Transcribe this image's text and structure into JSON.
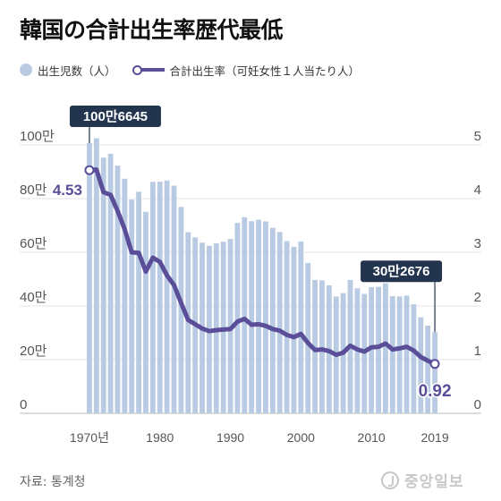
{
  "title": "韓国の合計出生率歴代最低",
  "legend": {
    "bars_label": "出生児数（人）",
    "line_label": "合計出生率（可妊女性１人当たり人）"
  },
  "source": "자료: 통계청",
  "brand": "중앙일보",
  "colors": {
    "bars": "#b9cbe3",
    "line": "#5a4e98",
    "callout": "#23344f"
  },
  "chart_data": {
    "type": "bar",
    "x": [
      1970,
      1971,
      1972,
      1973,
      1974,
      1975,
      1976,
      1977,
      1978,
      1979,
      1980,
      1981,
      1982,
      1983,
      1984,
      1985,
      1986,
      1987,
      1988,
      1989,
      1990,
      1991,
      1992,
      1993,
      1994,
      1995,
      1996,
      1997,
      1998,
      1999,
      2000,
      2001,
      2002,
      2003,
      2004,
      2005,
      2006,
      2007,
      2008,
      2009,
      2010,
      2011,
      2012,
      2013,
      2014,
      2015,
      2016,
      2017,
      2018,
      2019
    ],
    "xticks": [
      {
        "value": 1970,
        "label": "1970년"
      },
      {
        "value": 1980,
        "label": "1980"
      },
      {
        "value": 1990,
        "label": "1990"
      },
      {
        "value": 2000,
        "label": "2000"
      },
      {
        "value": 2010,
        "label": "2010"
      },
      {
        "value": 2019,
        "label": "2019"
      }
    ],
    "left_axis": {
      "ylim": [
        0,
        1100000
      ],
      "ticks": [
        0,
        200000,
        400000,
        600000,
        800000,
        1000000
      ],
      "tick_labels": [
        "0",
        "20만",
        "40만",
        "60만",
        "80만",
        "100만"
      ]
    },
    "right_axis": {
      "ylim": [
        0,
        5.5
      ],
      "ticks": [
        0,
        1,
        2,
        3,
        4,
        5
      ],
      "tick_labels": [
        "0",
        "1",
        "2",
        "3",
        "4",
        "5"
      ]
    },
    "series": [
      {
        "name": "出生児数（人）",
        "type": "bar",
        "axis": "left",
        "values": [
          1006645,
          1024773,
          952780,
          967074,
          922823,
          874030,
          796331,
          825339,
          750728,
          862669,
          862835,
          867409,
          848312,
          769155,
          674793,
          655489,
          636019,
          623831,
          633092,
          639431,
          649738,
          709275,
          730678,
          715826,
          721185,
          715020,
          691226,
          675394,
          641594,
          620668,
          640089,
          559934,
          496911,
          495036,
          476958,
          435031,
          448153,
          496822,
          465892,
          444849,
          470171,
          471265,
          484550,
          436455,
          435435,
          438420,
          406243,
          357771,
          326822,
          302676
        ]
      },
      {
        "name": "合計出生率（可妊女性１人当たり人）",
        "type": "line",
        "axis": "right",
        "values": [
          4.53,
          4.54,
          4.12,
          4.07,
          3.77,
          3.43,
          3.0,
          2.99,
          2.64,
          2.9,
          2.82,
          2.57,
          2.39,
          2.06,
          1.74,
          1.66,
          1.58,
          1.53,
          1.55,
          1.56,
          1.57,
          1.71,
          1.76,
          1.65,
          1.66,
          1.63,
          1.57,
          1.54,
          1.46,
          1.42,
          1.48,
          1.31,
          1.18,
          1.19,
          1.16,
          1.09,
          1.13,
          1.26,
          1.19,
          1.15,
          1.23,
          1.24,
          1.3,
          1.19,
          1.21,
          1.24,
          1.17,
          1.05,
          0.98,
          0.92
        ]
      }
    ],
    "callouts": [
      {
        "label": "100만6645",
        "x": 1970,
        "series": 0
      },
      {
        "label": "30만2676",
        "x": 2019,
        "series": 0
      },
      {
        "label": "4.53",
        "x": 1970,
        "series": 1
      },
      {
        "label": "0.92",
        "x": 2019,
        "series": 1
      }
    ]
  }
}
